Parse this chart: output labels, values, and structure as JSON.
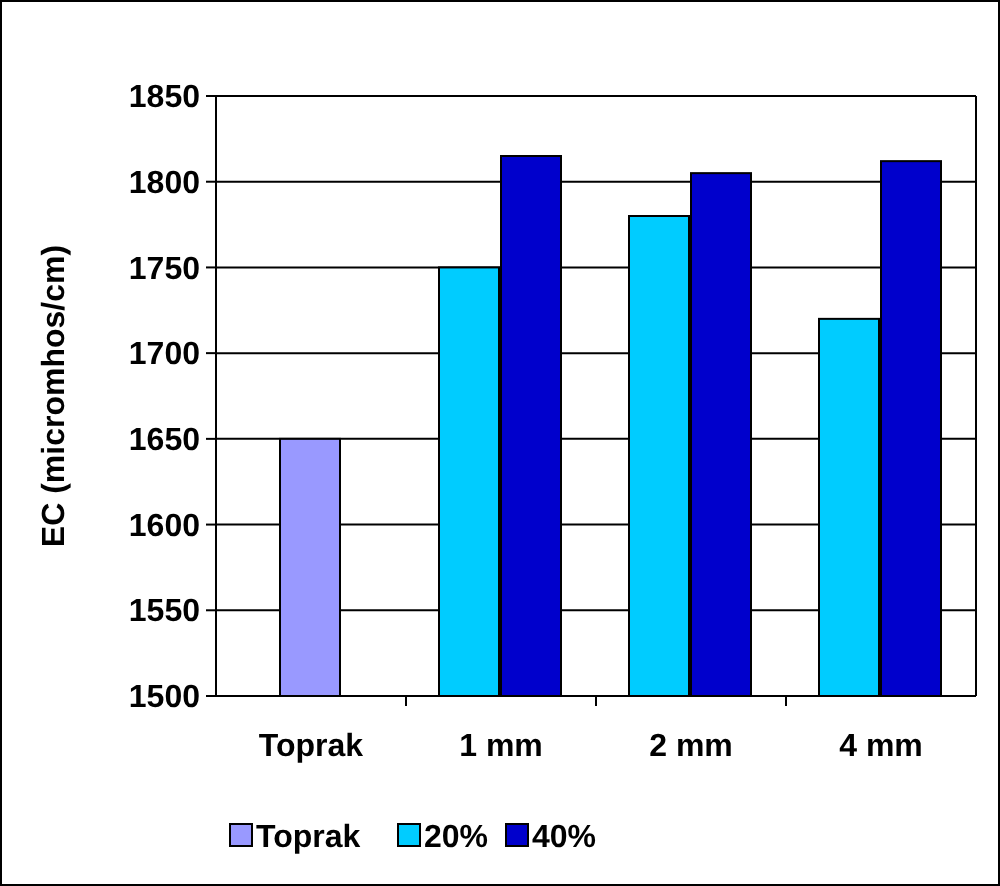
{
  "chart_data": {
    "type": "bar",
    "ylabel": "EC (micromhos/cm)",
    "categories": [
      "Toprak",
      "1 mm",
      "2 mm",
      "4 mm"
    ],
    "series": [
      {
        "name": "Toprak",
        "color": "#9999ff",
        "values": [
          1650,
          null,
          null,
          null
        ]
      },
      {
        "name": "20%",
        "color": "#00ccff",
        "values": [
          null,
          1750,
          1780,
          1720
        ]
      },
      {
        "name": "40%",
        "color": "#0000cc",
        "values": [
          null,
          1815,
          1805,
          1812
        ]
      }
    ],
    "ylim": [
      1500,
      1850
    ],
    "yticks": [
      1500,
      1550,
      1600,
      1650,
      1700,
      1750,
      1800,
      1850
    ],
    "grid": "y",
    "legend": "bottom"
  }
}
